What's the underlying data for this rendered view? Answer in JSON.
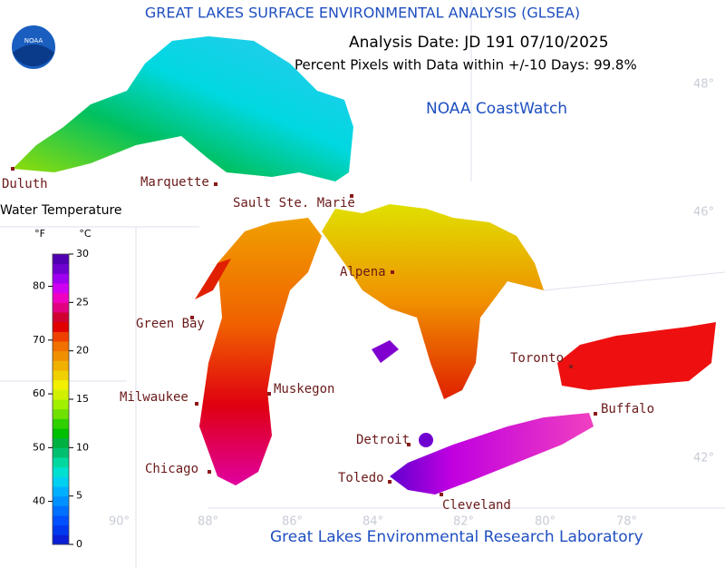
{
  "header": {
    "title": "GREAT LAKES SURFACE ENVIRONMENTAL ANALYSIS (GLSEA)",
    "logo": "NOAA",
    "analysis_date": "Analysis Date:  JD 191 07/10/2025",
    "coverage": "Percent Pixels with Data within +/-10 Days:  99.8%",
    "source": "NOAA CoastWatch"
  },
  "legend": {
    "title": "Water Temperature",
    "f_label": "°F",
    "c_label": "°C",
    "clim": [
      0,
      30
    ],
    "f_ticks": [
      40,
      50,
      60,
      70,
      80
    ],
    "c_ticks": [
      0,
      5,
      10,
      15,
      20,
      25,
      30
    ],
    "colors": [
      "#0a1fd6",
      "#0038f0",
      "#0050ff",
      "#0070ff",
      "#0090ff",
      "#00b0ff",
      "#00d0f0",
      "#00e0d0",
      "#00d8a0",
      "#00c070",
      "#00b040",
      "#00c000",
      "#30d000",
      "#70e000",
      "#a0f000",
      "#d0f000",
      "#f0f000",
      "#f0d000",
      "#f0b000",
      "#f09000",
      "#f07000",
      "#f04000",
      "#e00000",
      "#d00030",
      "#e00080",
      "#f000c0",
      "#d000f0",
      "#a000f0",
      "#7000d0",
      "#5000b0"
    ]
  },
  "cities": [
    "Duluth",
    "Marquette",
    "Sault Ste. Marie",
    "Alpena",
    "Green Bay",
    "Toronto",
    "Milwaukee",
    "Muskegon",
    "Buffalo",
    "Detroit",
    "Chicago",
    "Toledo",
    "Cleveland"
  ],
  "graticule": {
    "lat": [
      "48°",
      "46°",
      "42°"
    ],
    "lon": [
      "90°",
      "88°",
      "86°",
      "84°",
      "82°",
      "80°",
      "78°"
    ]
  },
  "footer": "Great Lakes Environmental Research Laboratory"
}
